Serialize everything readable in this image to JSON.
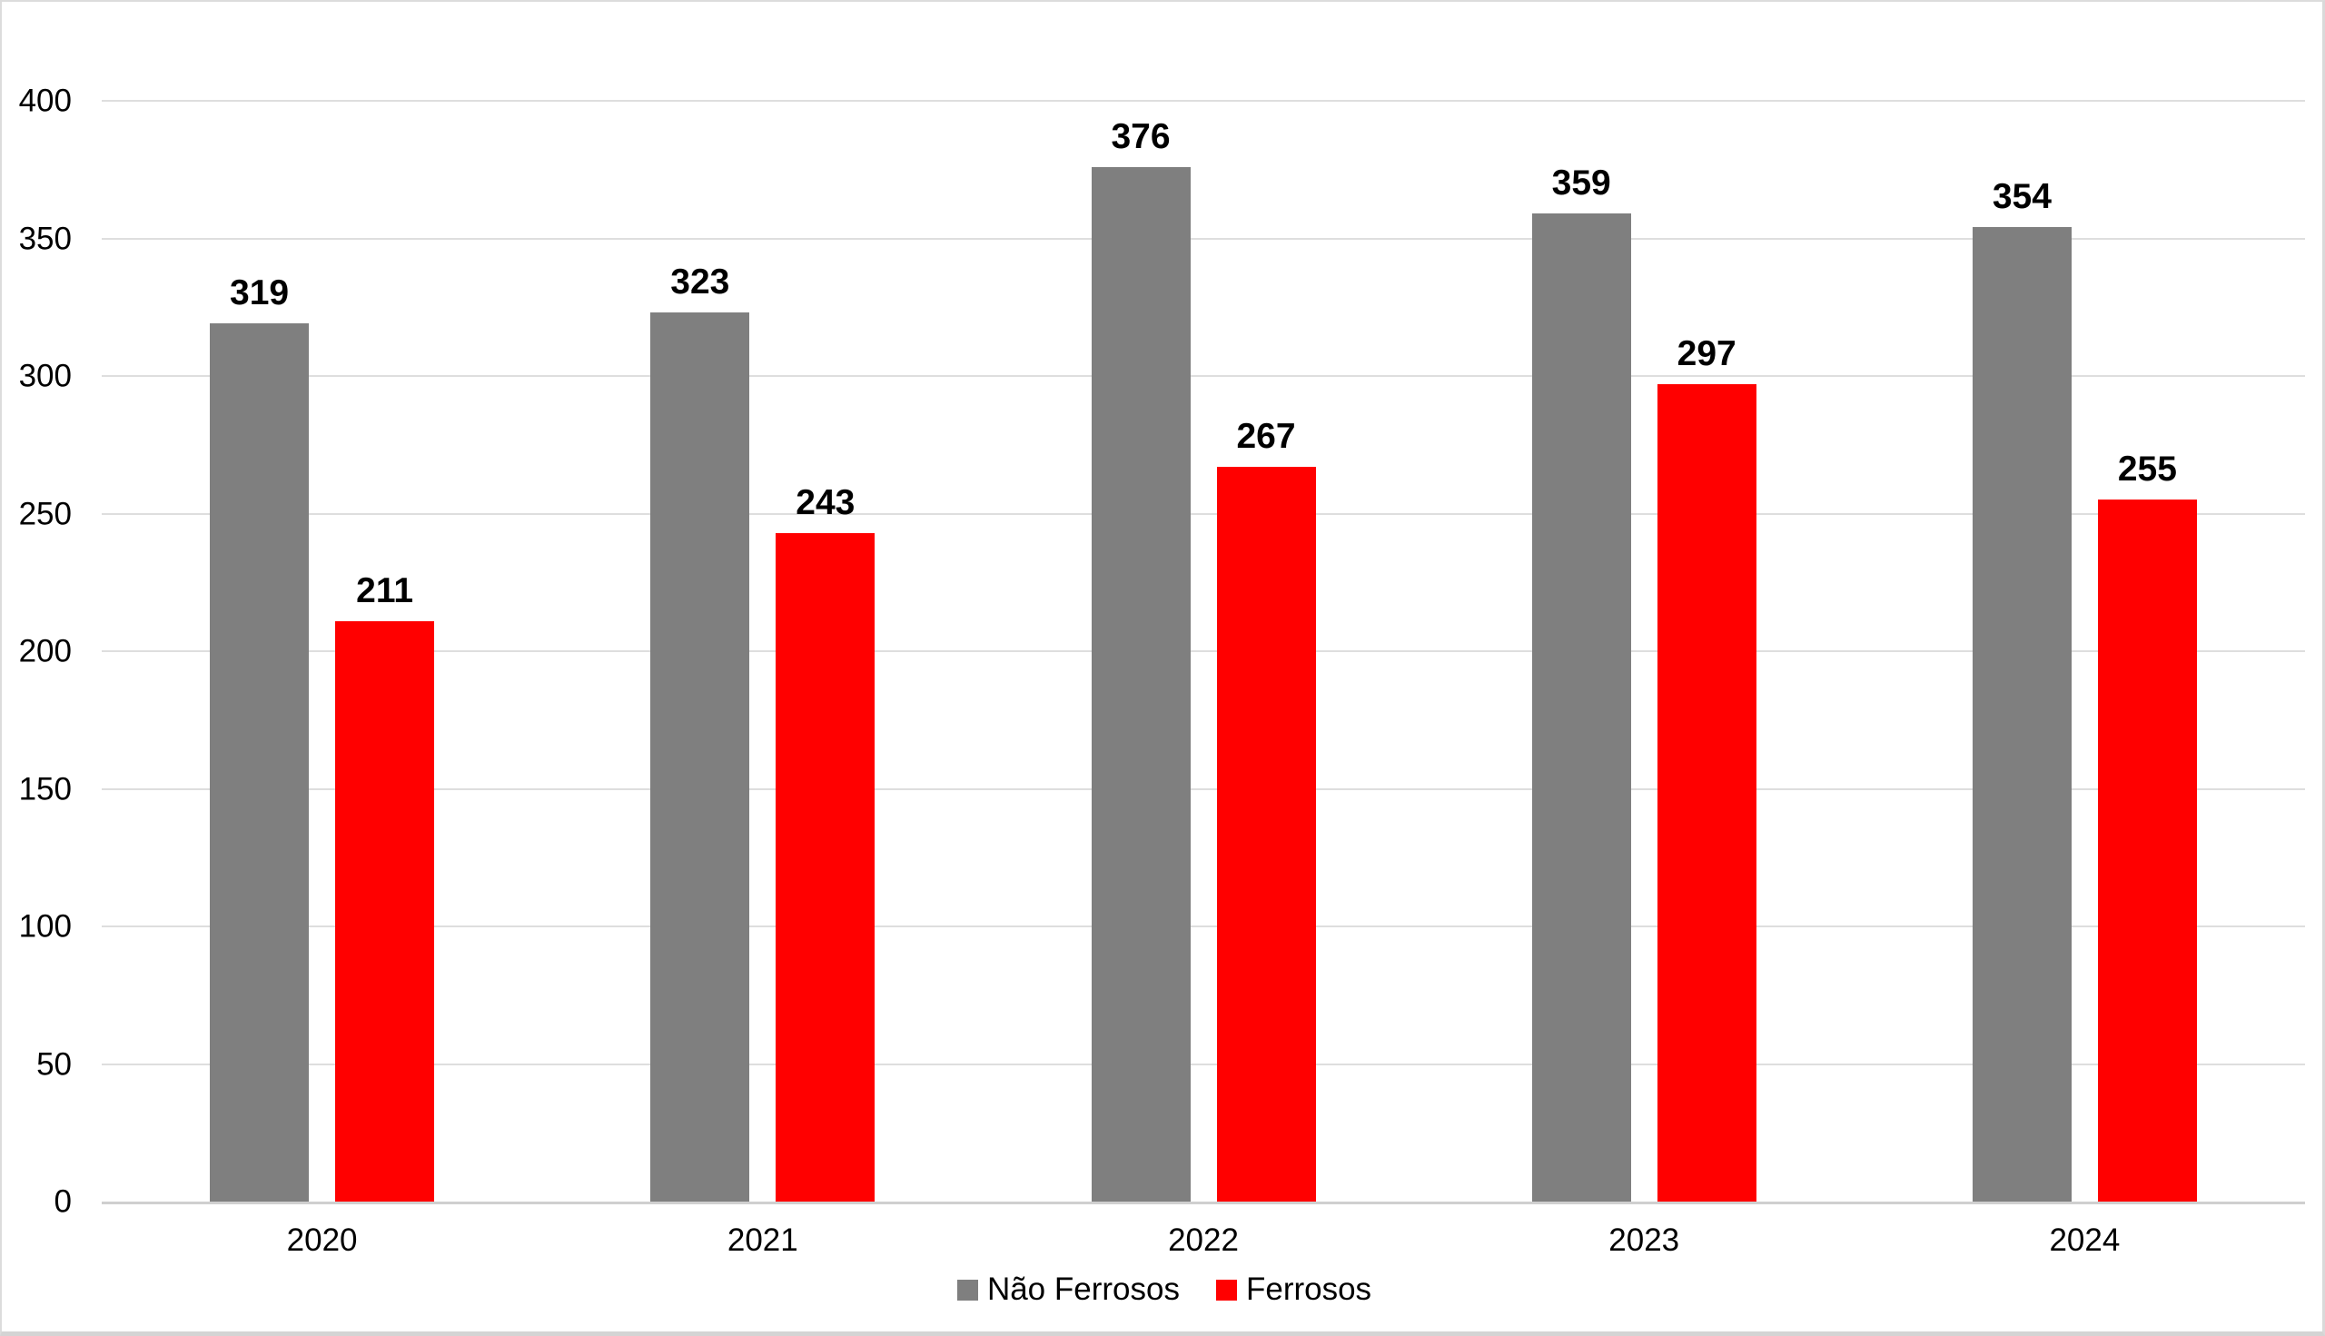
{
  "chart_data": {
    "type": "bar",
    "title": "",
    "xlabel": "",
    "ylabel": "",
    "categories": [
      "2020",
      "2021",
      "2022",
      "2023",
      "2024"
    ],
    "series": [
      {
        "name": "Não Ferrosos",
        "color": "#7f7f7f",
        "values": [
          319,
          323,
          376,
          359,
          354
        ]
      },
      {
        "name": "Ferrosos",
        "color": "#ff0000",
        "values": [
          211,
          243,
          267,
          297,
          255
        ]
      }
    ],
    "data_labels": true,
    "ylim": [
      0,
      400
    ],
    "yticks": [
      0,
      50,
      100,
      150,
      200,
      250,
      300,
      350,
      400
    ],
    "grid": true,
    "gridline_color": "#dedede",
    "axis_line_color": "#cfcfcf",
    "legend_position": "bottom"
  }
}
